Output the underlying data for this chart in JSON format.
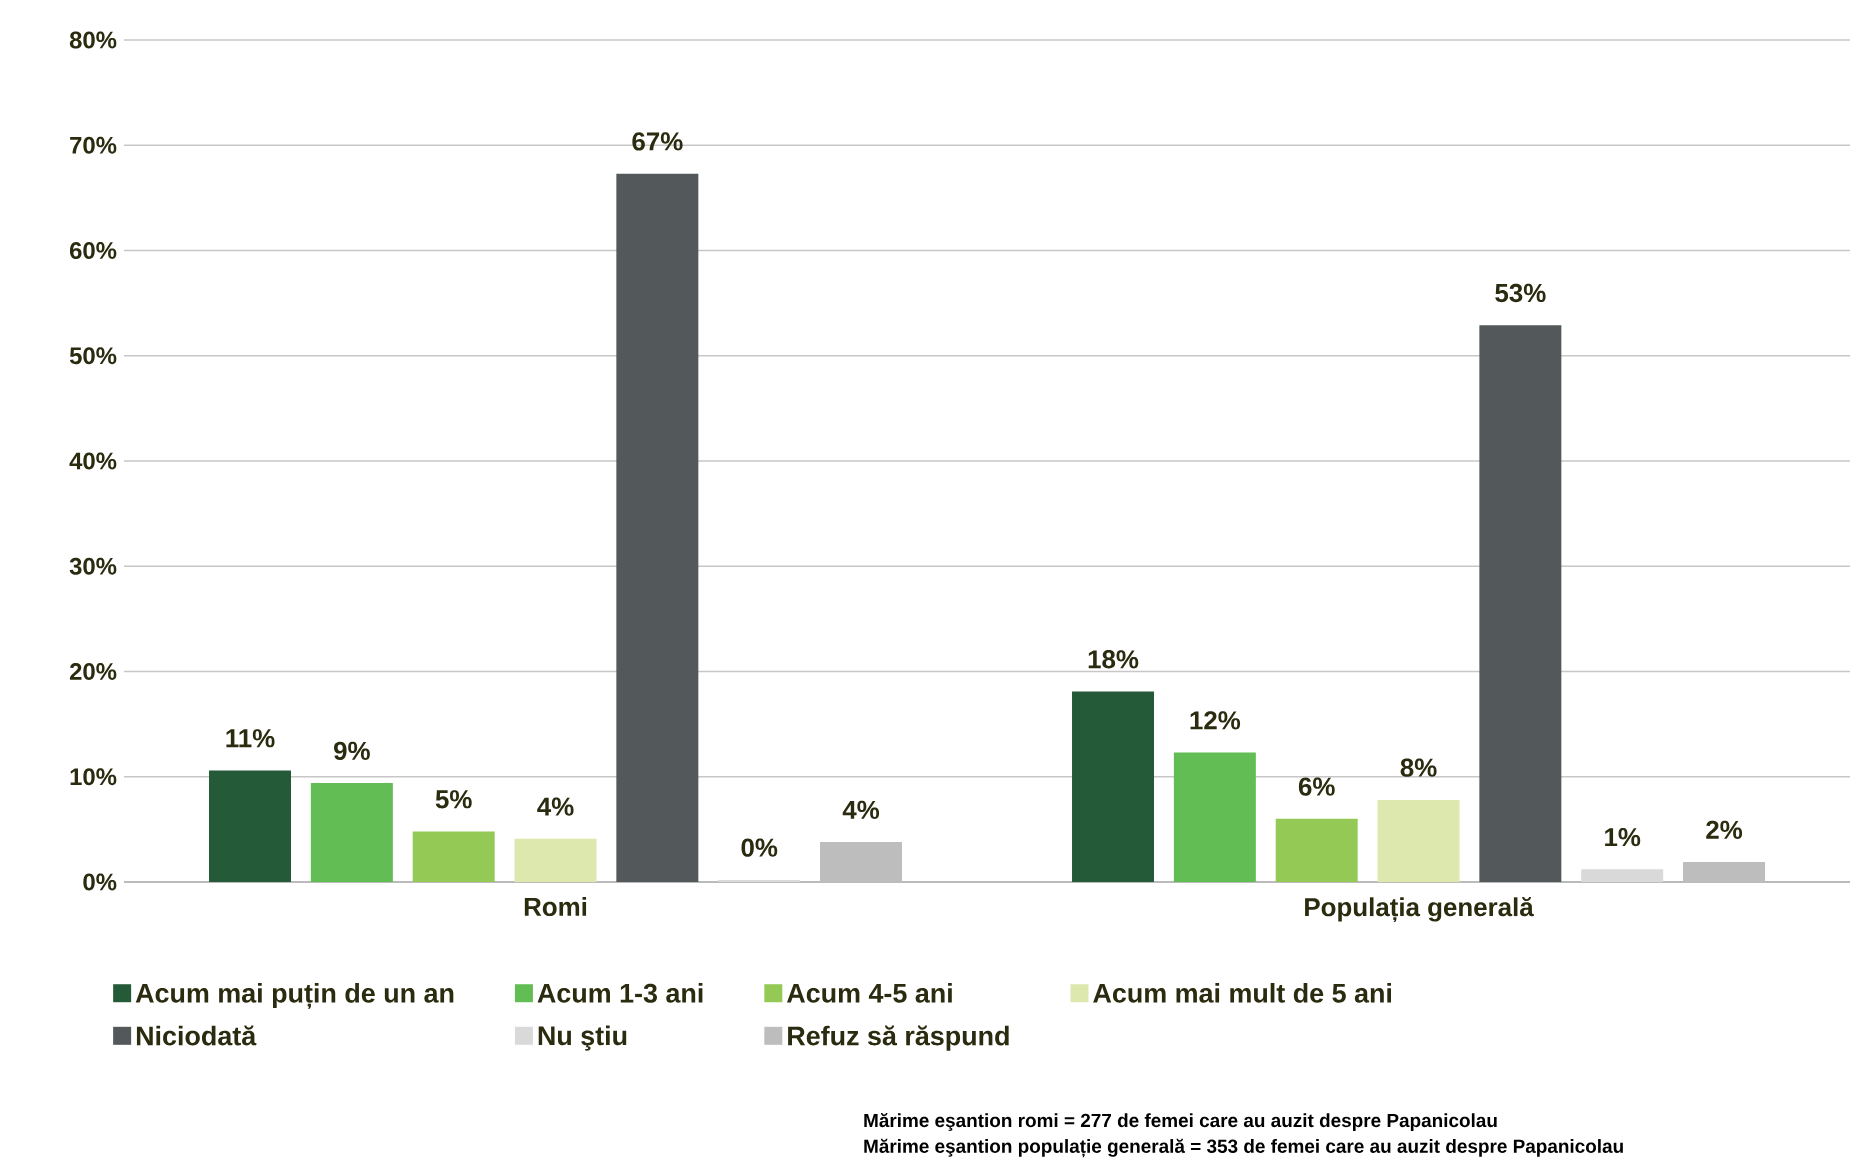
{
  "chart_data": {
    "type": "bar",
    "categories": [
      "Romi",
      "Populația generală"
    ],
    "series": [
      {
        "name": "Acum mai puțin de un an",
        "color": "#245a37",
        "values": [
          10.6,
          18.1
        ],
        "value_labels": [
          "11%",
          "18%"
        ]
      },
      {
        "name": "Acum 1-3 ani",
        "color": "#62bd55",
        "values": [
          9.4,
          12.3
        ],
        "value_labels": [
          "9%",
          "12%"
        ]
      },
      {
        "name": "Acum 4-5 ani",
        "color": "#94c955",
        "values": [
          4.8,
          6.0
        ],
        "value_labels": [
          "5%",
          "6%"
        ]
      },
      {
        "name": "Acum mai mult de 5 ani",
        "color": "#dce8ad",
        "values": [
          4.1,
          7.8
        ],
        "value_labels": [
          "4%",
          "8%"
        ]
      },
      {
        "name": "Niciodată",
        "color": "#53585b",
        "values": [
          67.3,
          52.9
        ],
        "value_labels": [
          "67%",
          "53%"
        ]
      },
      {
        "name": "Nu ştiu",
        "color": "#d9d9d9",
        "values": [
          0.2,
          1.2
        ],
        "value_labels": [
          "0%",
          "1%"
        ]
      },
      {
        "name": "Refuz să răspund",
        "color": "#bdbdbd",
        "values": [
          3.8,
          1.9
        ],
        "value_labels": [
          "4%",
          "2%"
        ]
      }
    ],
    "ylim": [
      0,
      80
    ],
    "yticks": [
      {
        "value": 0,
        "label": "0%"
      },
      {
        "value": 10,
        "label": "10%"
      },
      {
        "value": 20,
        "label": "20%"
      },
      {
        "value": 30,
        "label": "30%"
      },
      {
        "value": 40,
        "label": "40%"
      },
      {
        "value": 50,
        "label": "50%"
      },
      {
        "value": 60,
        "label": "60%"
      },
      {
        "value": 70,
        "label": "70%"
      },
      {
        "value": 80,
        "label": "80%"
      }
    ],
    "grid": "y",
    "legend": "bottom",
    "annotations": [
      "Mărime eşantion romi = 277 de femei care au auzit despre Papanicolau",
      "Mărime eşantion populație generală = 353 de femei care au auzit despre Papanicolau"
    ]
  }
}
